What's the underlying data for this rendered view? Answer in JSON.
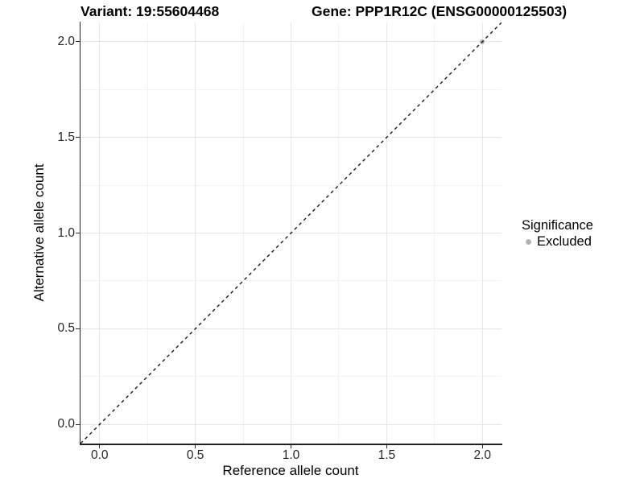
{
  "titles": {
    "variant": "Variant: 19:55604468",
    "gene": "Gene: PPP1R12C (ENSG00000125503)"
  },
  "axes": {
    "x": {
      "label": "Reference allele count",
      "tick_labels": [
        "0.0",
        "0.5",
        "1.0",
        "1.5",
        "2.0"
      ]
    },
    "y": {
      "label": "Alternative allele count",
      "tick_labels": [
        "0.0",
        "0.5",
        "1.0",
        "1.5",
        "2.0"
      ]
    }
  },
  "legend": {
    "title": "Significance",
    "items": [
      {
        "label": "Excluded",
        "color": "#b4b4b4"
      }
    ]
  },
  "chart_data": {
    "type": "scatter",
    "title_left": "Variant: 19:55604468",
    "title_right": "Gene: PPP1R12C (ENSG00000125503)",
    "xlabel": "Reference allele count",
    "ylabel": "Alternative allele count",
    "xlim": [
      -0.1,
      2.1
    ],
    "ylim": [
      -0.1,
      2.1
    ],
    "x_ticks": [
      0.0,
      0.5,
      1.0,
      1.5,
      2.0
    ],
    "y_ticks": [
      0.0,
      0.5,
      1.0,
      1.5,
      2.0
    ],
    "grid": {
      "on": true,
      "major_color": "#e6e6e6",
      "minor_color": "#f2f2f2",
      "minor_step": 0.25
    },
    "series": [
      {
        "name": "Excluded",
        "color": "#b4b4b4",
        "points": [
          {
            "x": 2.0,
            "y": 2.0
          }
        ]
      }
    ],
    "reference_line": {
      "kind": "identity",
      "slope": 1,
      "intercept": 0,
      "style": "dashed",
      "color": "#1a1a1a"
    },
    "legend_position": "right",
    "legend_title": "Significance"
  }
}
